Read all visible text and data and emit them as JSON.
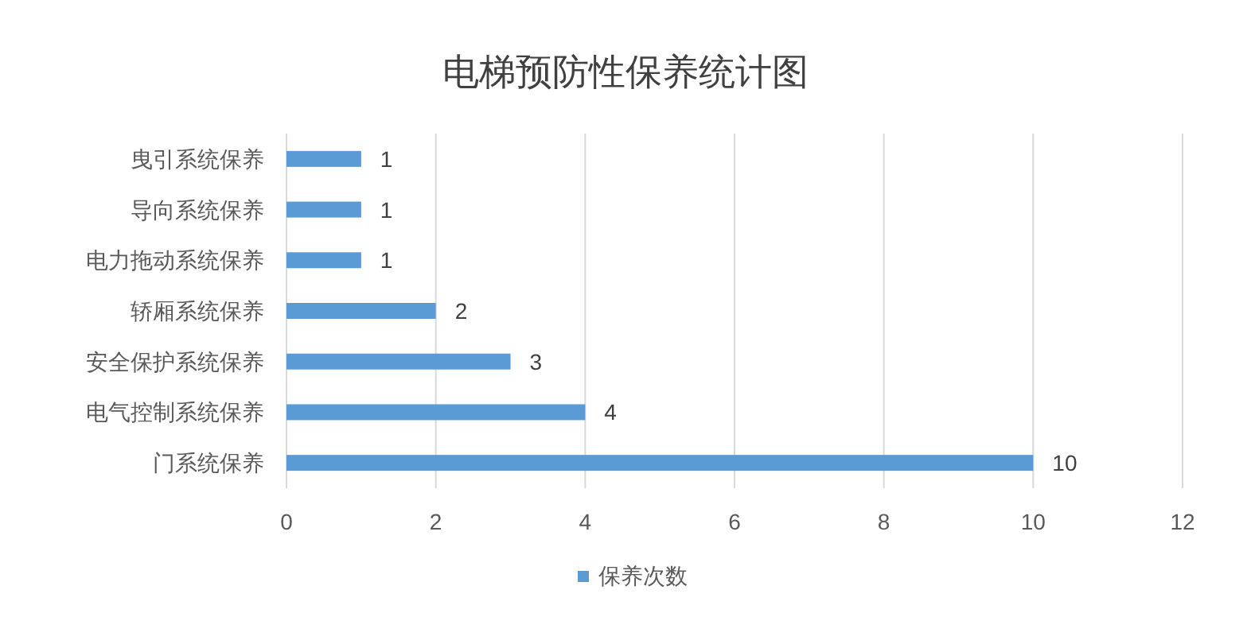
{
  "chart_data": {
    "type": "bar",
    "orientation": "horizontal",
    "title": "电梯预防性保养统计图",
    "categories": [
      "曳引系统保养",
      "导向系统保养",
      "电力拖动系统保养",
      "轿厢系统保养",
      "安全保护系统保养",
      "电气控制系统保养",
      "门系统保养"
    ],
    "series": [
      {
        "name": "保养次数",
        "color": "#5b9bd5",
        "values": [
          1,
          1,
          1,
          2,
          3,
          4,
          10
        ]
      }
    ],
    "xlim": [
      0,
      12
    ],
    "xticks": [
      0,
      2,
      4,
      6,
      8,
      10,
      12
    ],
    "grid": "x",
    "legend": "bottom",
    "data_labels": true
  }
}
